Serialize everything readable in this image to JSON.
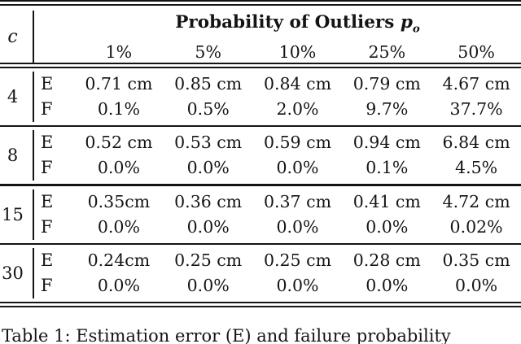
{
  "table": {
    "corner_label": "c",
    "title_text": "Probability of Outliers",
    "title_var": "p",
    "title_var_sub": "o",
    "col_headers": [
      "1%",
      "5%",
      "10%",
      "25%",
      "50%"
    ],
    "row_labels": {
      "error": "E",
      "failure": "F"
    },
    "groups": [
      {
        "c": "4",
        "E": [
          "0.71 cm",
          "0.85 cm",
          "0.84 cm",
          "0.79 cm",
          "4.67 cm"
        ],
        "F": [
          "0.1%",
          "0.5%",
          "2.0%",
          "9.7%",
          "37.7%"
        ]
      },
      {
        "c": "8",
        "E": [
          "0.52 cm",
          "0.53 cm",
          "0.59 cm",
          "0.94 cm",
          "6.84 cm"
        ],
        "F": [
          "0.0%",
          "0.0%",
          "0.0%",
          "0.1%",
          "4.5%"
        ]
      },
      {
        "c": "15",
        "E": [
          "0.35cm",
          "0.36 cm",
          "0.37 cm",
          "0.41 cm",
          "4.72 cm"
        ],
        "F": [
          "0.0%",
          "0.0%",
          "0.0%",
          "0.0%",
          "0.02%"
        ]
      },
      {
        "c": "30",
        "E": [
          "0.24cm",
          "0.25 cm",
          "0.25 cm",
          "0.28 cm",
          "0.35 cm"
        ],
        "F": [
          "0.0%",
          "0.0%",
          "0.0%",
          "0.0%",
          "0.0%"
        ]
      }
    ],
    "caption": "Table 1: Estimation error (E) and failure probability"
  },
  "colors": {
    "text": "#141414",
    "rule": "#141414",
    "background": "#ffffff"
  }
}
